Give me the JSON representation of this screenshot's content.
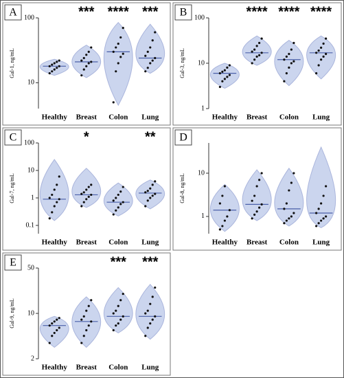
{
  "chart_data": [
    {
      "type": "violin",
      "title": "A",
      "y_label": "Gal-1, ng/mL",
      "yscale": "log",
      "ylim": [
        4,
        100
      ],
      "yticks": [
        10,
        100
      ],
      "categories": [
        "Healthy",
        "Breast",
        "Colon",
        "Lung"
      ],
      "significance": [
        null,
        "***",
        "****",
        "***"
      ],
      "violin_color": "#cbd5ee",
      "median_color": "#4a5fa8",
      "point_color": "#111111",
      "groups": [
        {
          "min": 13,
          "max": 23,
          "median": 18,
          "points": [
            14,
            15,
            16,
            17,
            18,
            18,
            19,
            20,
            21,
            22
          ]
        },
        {
          "min": 12,
          "max": 38,
          "median": 21,
          "points": [
            13,
            16,
            18,
            20,
            21,
            22,
            24,
            27,
            30,
            35
          ]
        },
        {
          "min": 4.5,
          "max": 85,
          "median": 30,
          "points": [
            5,
            15,
            20,
            25,
            28,
            30,
            35,
            40,
            50,
            70
          ]
        },
        {
          "min": 14,
          "max": 80,
          "median": 24,
          "points": [
            15,
            17,
            20,
            22,
            24,
            26,
            30,
            35,
            45,
            60
          ]
        }
      ]
    },
    {
      "type": "violin",
      "title": "B",
      "y_label": "Gal-3, ng/mL",
      "yscale": "log",
      "ylim": [
        1,
        100
      ],
      "yticks": [
        1,
        10,
        100
      ],
      "categories": [
        "Healthy",
        "Breast",
        "Colon",
        "Lung"
      ],
      "significance": [
        null,
        "****",
        "****",
        "****"
      ],
      "violin_color": "#cbd5ee",
      "median_color": "#4a5fa8",
      "point_color": "#111111",
      "groups": [
        {
          "min": 2.8,
          "max": 10,
          "median": 6,
          "points": [
            3,
            4,
            4.5,
            5,
            5.5,
            6,
            6.5,
            7,
            8,
            9
          ]
        },
        {
          "min": 9,
          "max": 40,
          "median": 17,
          "points": [
            10,
            12,
            14,
            15,
            17,
            18,
            20,
            24,
            28,
            35
          ]
        },
        {
          "min": 3.2,
          "max": 32,
          "median": 12,
          "points": [
            4,
            6,
            8,
            10,
            11,
            12,
            14,
            16,
            20,
            28
          ]
        },
        {
          "min": 4.5,
          "max": 40,
          "median": 17,
          "points": [
            6,
            9,
            12,
            14,
            16,
            17,
            19,
            22,
            27,
            35
          ]
        }
      ]
    },
    {
      "type": "violin",
      "title": "C",
      "y_label": "Gal-7, ng/mL",
      "yscale": "log",
      "ylim": [
        0.05,
        100
      ],
      "yticks": [
        0.1,
        1,
        10,
        100
      ],
      "categories": [
        "Healthy",
        "Breast",
        "Colon",
        "Lung"
      ],
      "significance": [
        null,
        "*",
        null,
        "**"
      ],
      "violin_color": "#cbd5ee",
      "median_color": "#4a5fa8",
      "point_color": "#111111",
      "groups": [
        {
          "min": 0.15,
          "max": 25,
          "median": 0.9,
          "points": [
            0.18,
            0.3,
            0.5,
            0.7,
            0.9,
            1,
            1.3,
            2,
            3,
            6
          ]
        },
        {
          "min": 0.45,
          "max": 12,
          "median": 1.3,
          "points": [
            0.5,
            0.7,
            0.9,
            1.1,
            1.3,
            1.4,
            1.6,
            2,
            2.5,
            3
          ]
        },
        {
          "min": 0.22,
          "max": 3.5,
          "median": 0.7,
          "points": [
            0.25,
            0.35,
            0.45,
            0.6,
            0.7,
            0.8,
            1,
            1.3,
            1.7,
            2.5
          ]
        },
        {
          "min": 0.4,
          "max": 4.5,
          "median": 1.5,
          "points": [
            0.5,
            0.8,
            1,
            1.2,
            1.4,
            1.6,
            1.8,
            2.2,
            3,
            4
          ]
        }
      ]
    },
    {
      "type": "violin",
      "title": "D",
      "y_label": "Gal-8, ng/mL",
      "yscale": "log",
      "ylim": [
        0.4,
        50
      ],
      "yticks": [
        1,
        10
      ],
      "categories": [
        "Healthy",
        "Breast",
        "Colon",
        "Lung"
      ],
      "significance": [
        null,
        null,
        null,
        null
      ],
      "violin_color": "#cbd5ee",
      "median_color": "#4a5fa8",
      "point_color": "#111111",
      "groups": [
        {
          "min": 0.45,
          "max": 5.5,
          "median": 1.4,
          "points": [
            0.5,
            0.6,
            0.8,
            1,
            1.4,
            2,
            3,
            5
          ]
        },
        {
          "min": 0.8,
          "max": 12,
          "median": 1.9,
          "points": [
            0.9,
            1.1,
            1.3,
            1.6,
            1.9,
            2.3,
            3,
            5,
            7,
            10
          ]
        },
        {
          "min": 0.6,
          "max": 13,
          "median": 1.5,
          "points": [
            0.7,
            0.8,
            0.9,
            1,
            1.2,
            1.5,
            2,
            4,
            6,
            10
          ]
        },
        {
          "min": 0.55,
          "max": 40,
          "median": 1.2,
          "points": [
            0.6,
            0.7,
            0.8,
            0.9,
            1,
            1.2,
            1.5,
            2,
            3,
            5
          ]
        }
      ]
    },
    {
      "type": "violin",
      "title": "E",
      "y_label": "Gal-9, ng/mL",
      "yscale": "log",
      "ylim": [
        2,
        50
      ],
      "yticks": [
        2,
        10,
        50
      ],
      "categories": [
        "Healthy",
        "Breast",
        "Colon",
        "Lung"
      ],
      "significance": [
        null,
        null,
        "***",
        "***"
      ],
      "violin_color": "#cbd5ee",
      "median_color": "#4a5fa8",
      "point_color": "#111111",
      "groups": [
        {
          "min": 3,
          "max": 9,
          "median": 6.5,
          "points": [
            3.5,
            4.5,
            5,
            5.5,
            6,
            6.5,
            7,
            7.5,
            8,
            8.5
          ]
        },
        {
          "min": 3,
          "max": 18,
          "median": 7.5,
          "points": [
            3.5,
            4.5,
            5.5,
            6.5,
            7.5,
            8,
            9,
            11,
            13,
            16
          ]
        },
        {
          "min": 5,
          "max": 25,
          "median": 9,
          "points": [
            5.5,
            6.5,
            7,
            8,
            9,
            10,
            11,
            13,
            16,
            20
          ]
        },
        {
          "min": 4,
          "max": 28,
          "median": 9,
          "points": [
            4.5,
            6,
            7,
            8,
            9,
            10,
            11,
            14,
            18,
            25
          ]
        }
      ]
    }
  ]
}
